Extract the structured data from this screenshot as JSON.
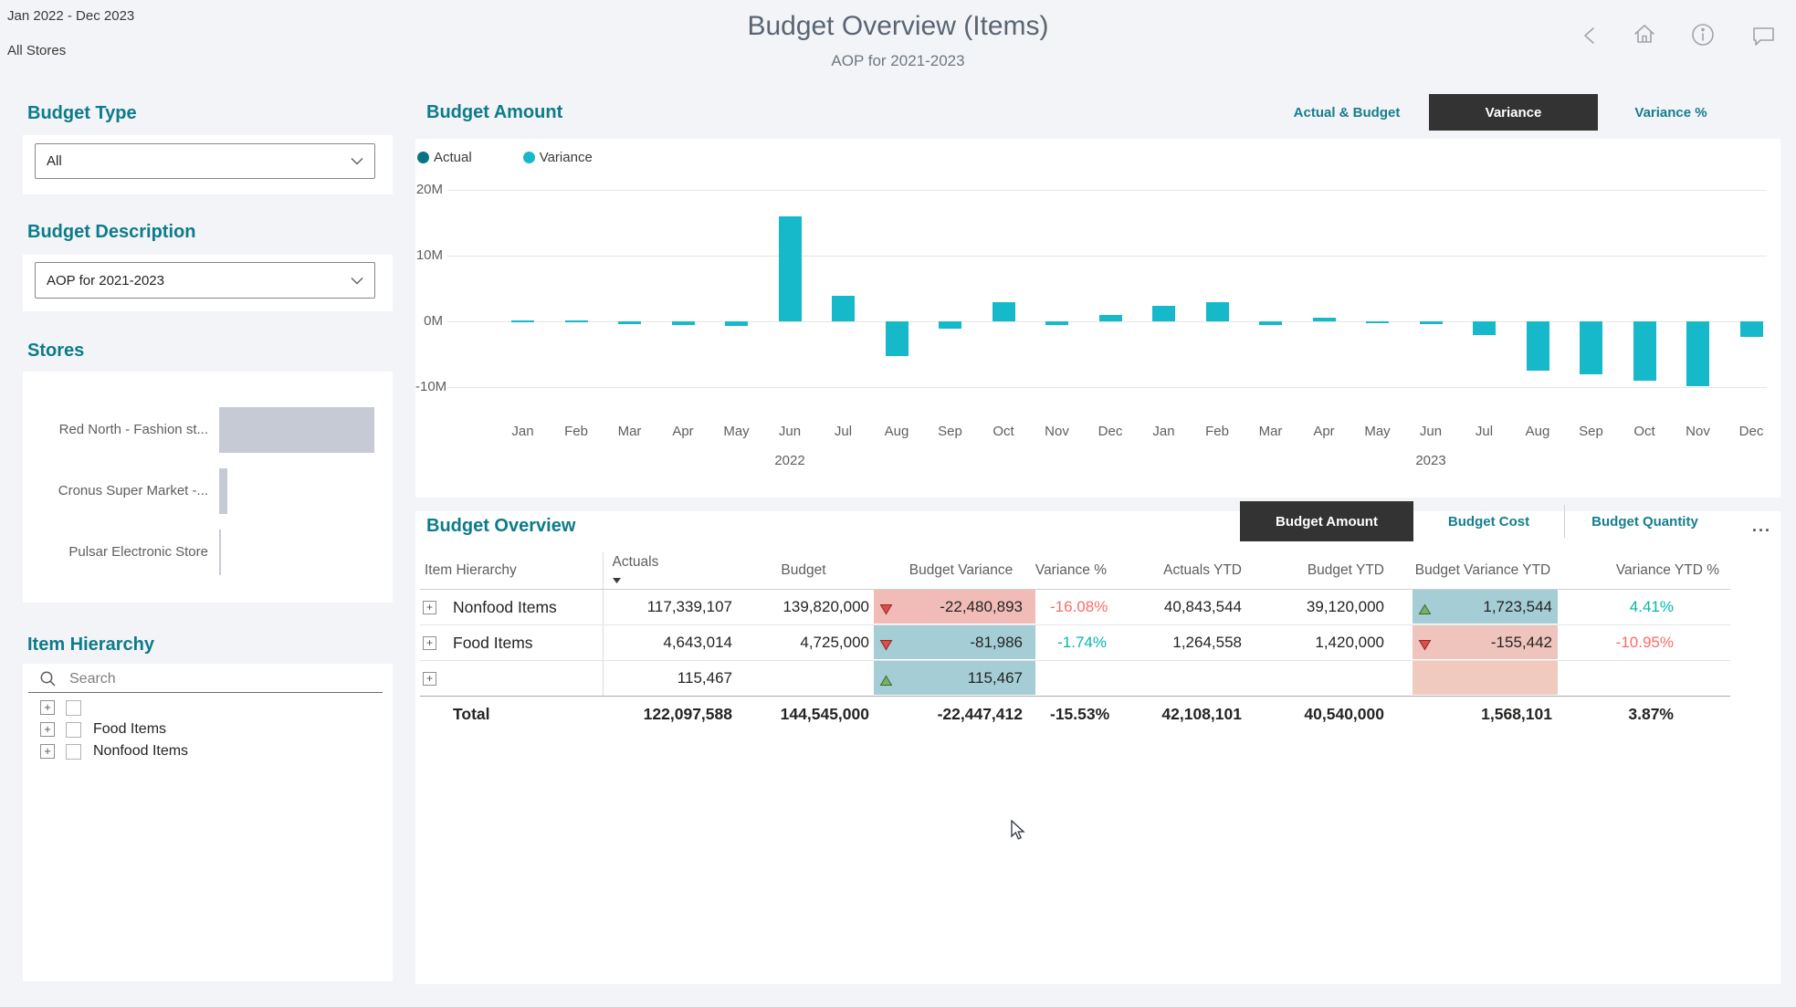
{
  "page": {
    "date_range": "Jan 2022 - Dec 2023",
    "store_filter": "All Stores",
    "title": "Budget Overview (Items)",
    "subtitle": "AOP for 2021-2023"
  },
  "sidebar": {
    "budget_type": {
      "label": "Budget Type",
      "value": "All"
    },
    "budget_description": {
      "label": "Budget Description",
      "value": "AOP for 2021-2023"
    },
    "stores": {
      "label": "Stores",
      "bar_color": "#c5cad4",
      "bars": [
        {
          "name": "Red North - Fashion st...",
          "fraction": 1.0
        },
        {
          "name": "Cronus Super Market -...",
          "fraction": 0.055
        },
        {
          "name": "Pulsar Electronic Store",
          "fraction": 0.012
        }
      ]
    },
    "item_hierarchy": {
      "label": "Item Hierarchy",
      "search_placeholder": "Search",
      "items": [
        {
          "label": ""
        },
        {
          "label": "Food Items"
        },
        {
          "label": "Nonfood Items"
        }
      ]
    }
  },
  "chart": {
    "title": "Budget Amount",
    "tabs": [
      {
        "label": "Actual & Budget",
        "active": false
      },
      {
        "label": "Variance",
        "active": true
      },
      {
        "label": "Variance %",
        "active": false
      }
    ],
    "legend": [
      {
        "label": "Actual",
        "color": "#077282"
      },
      {
        "label": "Variance",
        "color": "#16b9c9"
      }
    ],
    "chart_data": {
      "type": "bar",
      "title": "Budget Amount",
      "unit": "millions",
      "x_months": [
        "Jan",
        "Feb",
        "Mar",
        "Apr",
        "May",
        "Jun",
        "Jul",
        "Aug",
        "Sep",
        "Oct",
        "Nov",
        "Dec",
        "Jan",
        "Feb",
        "Mar",
        "Apr",
        "May",
        "Jun",
        "Jul",
        "Aug",
        "Sep",
        "Oct",
        "Nov",
        "Dec"
      ],
      "year_labels": [
        {
          "label": "2022",
          "month_index": 5
        },
        {
          "label": "2023",
          "month_index": 17
        }
      ],
      "series": [
        {
          "name": "Variance",
          "color": "#16b9c9",
          "values_millions": [
            0.2,
            0.2,
            -0.4,
            -0.5,
            -0.7,
            16.0,
            3.9,
            -5.3,
            -1.1,
            2.9,
            -0.5,
            1.0,
            2.3,
            2.9,
            -0.6,
            0.5,
            -0.2,
            -0.4,
            -2.1,
            -7.5,
            -8.0,
            -9.0,
            -9.8,
            -2.3
          ]
        }
      ],
      "y_ticks": [
        {
          "label": "20M",
          "value": 20
        },
        {
          "label": "10M",
          "value": 10
        },
        {
          "label": "0M",
          "value": 0
        },
        {
          "label": "-10M",
          "value": -10
        }
      ],
      "ylim": [
        -13,
        21
      ],
      "grid": true,
      "legend_position": "top-left"
    }
  },
  "table": {
    "title": "Budget Overview",
    "tabs": [
      {
        "label": "Budget Amount",
        "active": true
      },
      {
        "label": "Budget Cost",
        "active": false
      },
      {
        "label": "Budget Quantity",
        "active": false
      }
    ],
    "more_label": "...",
    "columns": [
      {
        "label": "Item Hierarchy"
      },
      {
        "label": "Actuals",
        "sorted": true
      },
      {
        "label": "Budget"
      },
      {
        "label": "Budget Variance"
      },
      {
        "label": "Variance %"
      },
      {
        "label": "Actuals YTD"
      },
      {
        "label": "Budget YTD"
      },
      {
        "label": "Budget Variance YTD"
      },
      {
        "label": "Variance YTD %"
      }
    ],
    "rows": [
      {
        "name": "Nonfood Items",
        "actuals": "117,339,107",
        "budget": "139,820,000",
        "budget_variance": {
          "value": "-22,480,893",
          "icon": "down",
          "bg": "#f1bcb8"
        },
        "variance_pct": {
          "value": "-16.08%",
          "color": "#fd6b66"
        },
        "actuals_ytd": "40,843,544",
        "budget_ytd": "39,120,000",
        "budget_variance_ytd": {
          "value": "1,723,544",
          "icon": "up",
          "bg": "#a4cdd5"
        },
        "variance_ytd_pct": {
          "value": "4.41%",
          "color": "#01b8aa"
        }
      },
      {
        "name": "Food Items",
        "actuals": "4,643,014",
        "budget": "4,725,000",
        "budget_variance": {
          "value": "-81,986",
          "icon": "down",
          "bg": "#a4cdd5"
        },
        "variance_pct": {
          "value": "-1.74%",
          "color": "#01b8aa"
        },
        "actuals_ytd": "1,264,558",
        "budget_ytd": "1,420,000",
        "budget_variance_ytd": {
          "value": "-155,442",
          "icon": "down",
          "bg": "#efc4bd"
        },
        "variance_ytd_pct": {
          "value": "-10.95%",
          "color": "#fd6b66"
        }
      },
      {
        "name": "",
        "actuals": "115,467",
        "budget": "",
        "budget_variance": {
          "value": "115,467",
          "icon": "up",
          "bg": "#a4cdd5"
        },
        "variance_pct": {
          "value": "",
          "color": ""
        },
        "actuals_ytd": "",
        "budget_ytd": "",
        "budget_variance_ytd": {
          "value": "",
          "icon": "",
          "bg": "#f0cabf"
        },
        "variance_ytd_pct": {
          "value": "",
          "color": ""
        }
      }
    ],
    "total": {
      "name": "Total",
      "actuals": "122,097,588",
      "budget": "144,545,000",
      "budget_variance": "-22,447,412",
      "variance_pct": "-15.53%",
      "actuals_ytd": "42,108,101",
      "budget_ytd": "40,540,000",
      "budget_variance_ytd": "1,568,101",
      "variance_ytd_pct": "3.87%"
    }
  },
  "colors": {
    "accent_teal": "#0c7b8a",
    "selected_tab_bg": "#333333",
    "variance_bar": "#16b9c9",
    "actual_legend": "#077282",
    "positive_text": "#01b8aa",
    "negative_text": "#fd6b66",
    "store_bar": "#c5cad4"
  }
}
